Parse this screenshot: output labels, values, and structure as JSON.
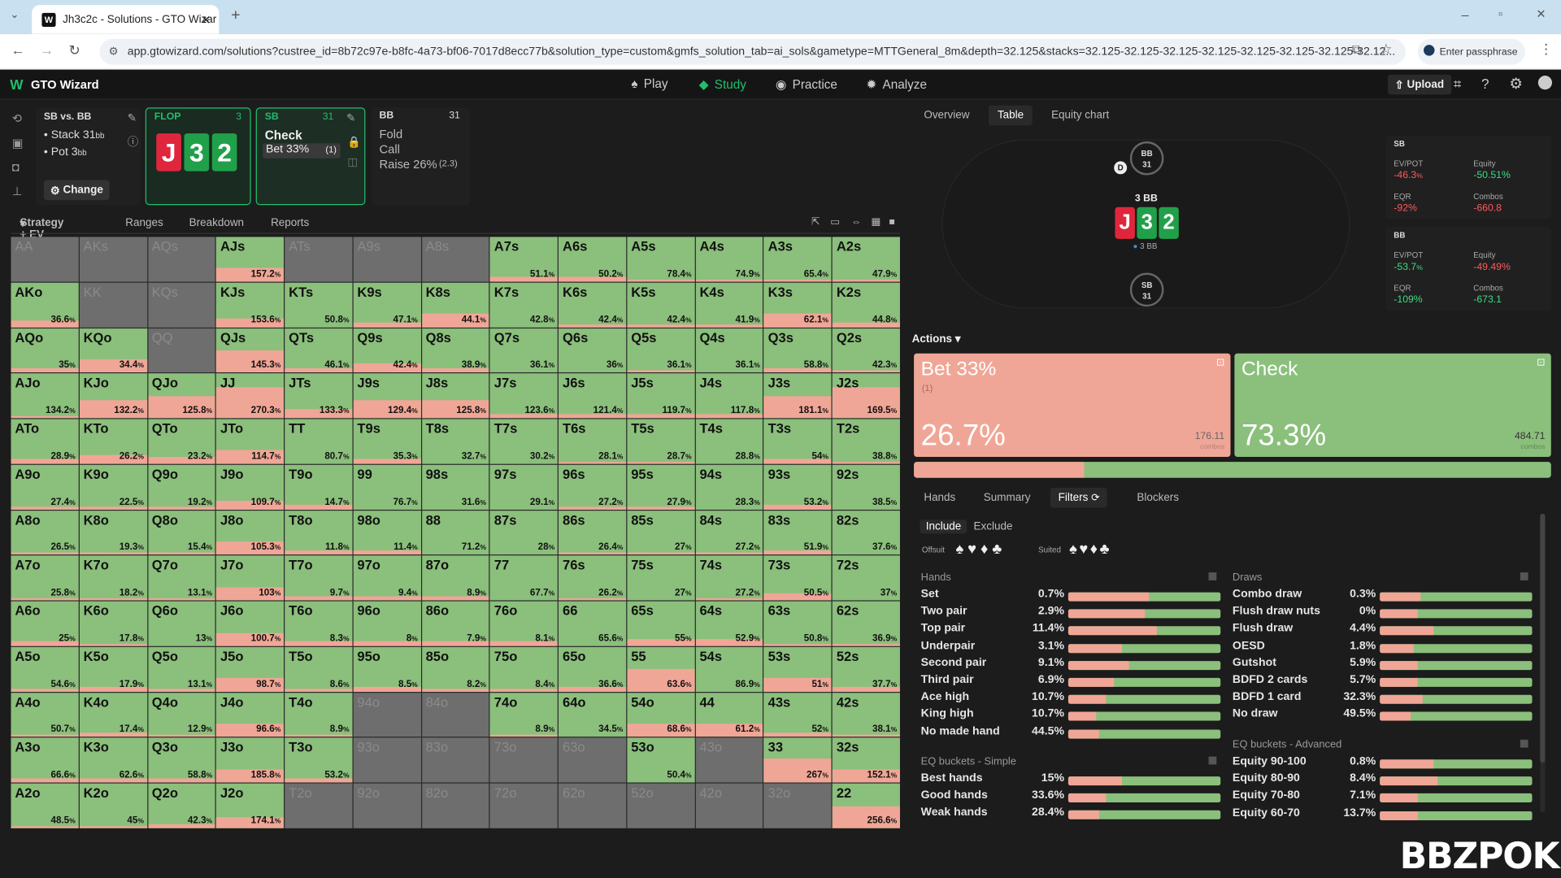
{
  "browser": {
    "tab_title": "Jh3c2c - Solutions - GTO Wizar",
    "url": "app.gtowizard.com/solutions?custree_id=8b72c97e-b8fc-4a73-bf06-7017d8ecc77b&solution_type=custom&gmfs_solution_tab=ai_sols&gametype=MTTGeneral_8m&depth=32.125&stacks=32.125-32.125-32.125-32.125-32.125-32.125-32.125-32.12...",
    "passphrase": "Enter passphrase"
  },
  "app": {
    "name": "GTO Wizard",
    "nav": [
      "Play",
      "Study",
      "Practice",
      "Analyze"
    ],
    "upload": "Upload"
  },
  "spot": {
    "title": "SB vs. BB",
    "stack": "Stack 31",
    "stack_unit": "bb",
    "pot": "Pot 3",
    "pot_unit": "bb",
    "change": "Change"
  },
  "flop": {
    "label": "FLOP",
    "num": "3",
    "cards": [
      "J",
      "3",
      "2"
    ]
  },
  "sb": {
    "label": "SB",
    "num": "31",
    "line1": "Check",
    "line2": "Bet 33%",
    "line2b": "(1)"
  },
  "bb": {
    "label": "BB",
    "num": "31",
    "opts": [
      "Fold",
      "Call",
      "Raise 26%"
    ],
    "raise_size": "(2.3)"
  },
  "subtabs": [
    "Strategy + EV",
    "Ranges",
    "Breakdown",
    "Reports"
  ],
  "grid": [
    [
      "AA",
      "",
      0
    ],
    [
      "AKs",
      "",
      0
    ],
    [
      "AQs",
      "",
      0
    ],
    [
      "AJs",
      "157.2",
      0.3
    ],
    [
      "ATs",
      "",
      0
    ],
    [
      "A9s",
      "",
      0
    ],
    [
      "A8s",
      "",
      0
    ],
    [
      "A7s",
      "51.1",
      0.1
    ],
    [
      "A6s",
      "50.2",
      0.1
    ],
    [
      "A5s",
      "78.4",
      0.05
    ],
    [
      "A4s",
      "74.9",
      0.05
    ],
    [
      "A3s",
      "65.4",
      0.05
    ],
    [
      "A2s",
      "47.9",
      0.05
    ],
    [
      "AKo",
      "36.6",
      0.15
    ],
    [
      "KK",
      "",
      0
    ],
    [
      "KQs",
      "",
      0
    ],
    [
      "KJs",
      "153.6",
      0.2
    ],
    [
      "KTs",
      "50.8",
      0.0
    ],
    [
      "K9s",
      "47.1",
      0.1
    ],
    [
      "K8s",
      "44.1",
      0.3
    ],
    [
      "K7s",
      "42.8",
      0.0
    ],
    [
      "K6s",
      "42.4",
      0.05
    ],
    [
      "K5s",
      "42.4",
      0.05
    ],
    [
      "K4s",
      "41.9",
      0.05
    ],
    [
      "K3s",
      "62.1",
      0.3
    ],
    [
      "K2s",
      "44.8",
      0.1
    ],
    [
      "AQo",
      "35",
      0.1
    ],
    [
      "KQo",
      "34.4",
      0.3
    ],
    [
      "QQ",
      "",
      0
    ],
    [
      "QJs",
      "145.3",
      0.5
    ],
    [
      "QTs",
      "46.1",
      0.1
    ],
    [
      "Q9s",
      "42.4",
      0.2
    ],
    [
      "Q8s",
      "38.9",
      0.1
    ],
    [
      "Q7s",
      "36.1",
      0.0
    ],
    [
      "Q6s",
      "36",
      0.0
    ],
    [
      "Q5s",
      "36.1",
      0.05
    ],
    [
      "Q4s",
      "36.1",
      0.0
    ],
    [
      "Q3s",
      "58.8",
      0.1
    ],
    [
      "Q2s",
      "42.3",
      0.05
    ],
    [
      "AJo",
      "134.2",
      0.05
    ],
    [
      "KJo",
      "132.2",
      0.4
    ],
    [
      "QJo",
      "125.8",
      0.5
    ],
    [
      "JJ",
      "270.3",
      0.7
    ],
    [
      "JTs",
      "133.3",
      0.2
    ],
    [
      "J9s",
      "129.4",
      0.4
    ],
    [
      "J8s",
      "125.8",
      0.4
    ],
    [
      "J7s",
      "123.6",
      0.1
    ],
    [
      "J6s",
      "121.4",
      0.1
    ],
    [
      "J5s",
      "119.7",
      0.1
    ],
    [
      "J4s",
      "117.8",
      0.1
    ],
    [
      "J3s",
      "181.1",
      0.5
    ],
    [
      "J2s",
      "169.5",
      0.7
    ],
    [
      "ATo",
      "28.9",
      0.1
    ],
    [
      "KTo",
      "26.2",
      0.2
    ],
    [
      "QTo",
      "23.2",
      0.15
    ],
    [
      "JTo",
      "114.7",
      0.3
    ],
    [
      "TT",
      "80.7",
      0.0
    ],
    [
      "T9s",
      "35.3",
      0.1
    ],
    [
      "T8s",
      "32.7",
      0.0
    ],
    [
      "T7s",
      "30.2",
      0.0
    ],
    [
      "T6s",
      "28.1",
      0.05
    ],
    [
      "T5s",
      "28.7",
      0.05
    ],
    [
      "T4s",
      "28.8",
      0.0
    ],
    [
      "T3s",
      "54",
      0.1
    ],
    [
      "T2s",
      "38.8",
      0.05
    ],
    [
      "A9o",
      "27.4",
      0.05
    ],
    [
      "K9o",
      "22.5",
      0.05
    ],
    [
      "Q9o",
      "19.2",
      0.05
    ],
    [
      "J9o",
      "109.7",
      0.2
    ],
    [
      "T9o",
      "14.7",
      0.1
    ],
    [
      "99",
      "76.7",
      0.0
    ],
    [
      "98s",
      "31.6",
      0.0
    ],
    [
      "97s",
      "29.1",
      0.0
    ],
    [
      "96s",
      "27.2",
      0.05
    ],
    [
      "95s",
      "27.9",
      0.05
    ],
    [
      "94s",
      "28.3",
      0.0
    ],
    [
      "93s",
      "53.2",
      0.1
    ],
    [
      "92s",
      "38.5",
      0.0
    ],
    [
      "A8o",
      "26.5",
      0.05
    ],
    [
      "K8o",
      "19.3",
      0.05
    ],
    [
      "Q8o",
      "15.4",
      0.05
    ],
    [
      "J8o",
      "105.3",
      0.3
    ],
    [
      "T8o",
      "11.8",
      0.1
    ],
    [
      "98o",
      "11.4",
      0.1
    ],
    [
      "88",
      "71.2",
      0.0
    ],
    [
      "87s",
      "28",
      0.0
    ],
    [
      "86s",
      "26.4",
      0.05
    ],
    [
      "85s",
      "27",
      0.05
    ],
    [
      "84s",
      "27.2",
      0.05
    ],
    [
      "83s",
      "51.9",
      0.1
    ],
    [
      "82s",
      "37.6",
      0.0
    ],
    [
      "A7o",
      "25.8",
      0.05
    ],
    [
      "K7o",
      "18.2",
      0.05
    ],
    [
      "Q7o",
      "13.1",
      0.05
    ],
    [
      "J7o",
      "103",
      0.3
    ],
    [
      "T7o",
      "9.7",
      0.1
    ],
    [
      "97o",
      "9.4",
      0.1
    ],
    [
      "87o",
      "8.9",
      0.1
    ],
    [
      "77",
      "67.7",
      0.0
    ],
    [
      "76s",
      "26.2",
      0.05
    ],
    [
      "75s",
      "27",
      0.0
    ],
    [
      "74s",
      "27.2",
      0.05
    ],
    [
      "73s",
      "50.5",
      0.15
    ],
    [
      "72s",
      "37",
      0.0
    ],
    [
      "A6o",
      "25",
      0.1
    ],
    [
      "K6o",
      "17.8",
      0.05
    ],
    [
      "Q6o",
      "13",
      0.0
    ],
    [
      "J6o",
      "100.7",
      0.3
    ],
    [
      "T6o",
      "8.3",
      0.1
    ],
    [
      "96o",
      "8",
      0.1
    ],
    [
      "86o",
      "7.9",
      0.1
    ],
    [
      "76o",
      "8.1",
      0.1
    ],
    [
      "66",
      "65.6",
      0.0
    ],
    [
      "65s",
      "55",
      0.15
    ],
    [
      "64s",
      "52.9",
      0.15
    ],
    [
      "63s",
      "50.8",
      0.05
    ],
    [
      "62s",
      "36.9",
      0.05
    ],
    [
      "A5o",
      "54.6",
      0.05
    ],
    [
      "K5o",
      "17.9",
      0.1
    ],
    [
      "Q5o",
      "13.1",
      0.05
    ],
    [
      "J5o",
      "98.7",
      0.3
    ],
    [
      "T5o",
      "8.6",
      0.05
    ],
    [
      "95o",
      "8.5",
      0.1
    ],
    [
      "85o",
      "8.2",
      0.05
    ],
    [
      "75o",
      "8.4",
      0.05
    ],
    [
      "65o",
      "36.6",
      0.1
    ],
    [
      "55",
      "63.6",
      0.5
    ],
    [
      "54s",
      "86.9",
      0.0
    ],
    [
      "53s",
      "51",
      0.3
    ],
    [
      "52s",
      "37.7",
      0.1
    ],
    [
      "A4o",
      "50.7",
      0.05
    ],
    [
      "K4o",
      "17.4",
      0.1
    ],
    [
      "Q4o",
      "12.9",
      0.05
    ],
    [
      "J4o",
      "96.6",
      0.3
    ],
    [
      "T4o",
      "8.9",
      0.05
    ],
    [
      "94o",
      "",
      0
    ],
    [
      "84o",
      "",
      0
    ],
    [
      "74o",
      "8.9",
      0.05
    ],
    [
      "64o",
      "34.5",
      0.0
    ],
    [
      "54o",
      "68.6",
      0.3
    ],
    [
      "44",
      "61.2",
      0.3
    ],
    [
      "43s",
      "52",
      0.1
    ],
    [
      "42s",
      "38.1",
      0.05
    ],
    [
      "A3o",
      "66.6",
      0.1
    ],
    [
      "K3o",
      "62.6",
      0.1
    ],
    [
      "Q3o",
      "58.8",
      0.1
    ],
    [
      "J3o",
      "185.8",
      0.3
    ],
    [
      "T3o",
      "53.2",
      0.1
    ],
    [
      "93o",
      "",
      0
    ],
    [
      "83o",
      "",
      0
    ],
    [
      "73o",
      "",
      0
    ],
    [
      "63o",
      "",
      0
    ],
    [
      "53o",
      "50.4",
      0.0
    ],
    [
      "43o",
      "",
      0
    ],
    [
      "33",
      "267",
      0.55
    ],
    [
      "32s",
      "152.1",
      0.3
    ],
    [
      "A2o",
      "48.5",
      0.05
    ],
    [
      "K2o",
      "45",
      0.05
    ],
    [
      "Q2o",
      "42.3",
      0.1
    ],
    [
      "J2o",
      "174.1",
      0.25
    ],
    [
      "T2o",
      "",
      0
    ],
    [
      "92o",
      "",
      0
    ],
    [
      "82o",
      "",
      0
    ],
    [
      "72o",
      "",
      0
    ],
    [
      "62o",
      "",
      0
    ],
    [
      "52o",
      "",
      0
    ],
    [
      "42o",
      "",
      0
    ],
    [
      "32o",
      "",
      0
    ],
    [
      "22",
      "256.6",
      0.5
    ]
  ],
  "grid_tools": [
    "⇱",
    "▭",
    "⇔",
    "▦",
    "■"
  ],
  "right_tabs": [
    "Overview",
    "Table",
    "Equity chart"
  ],
  "table": {
    "bb_seat": "BB",
    "bb_stack": "31",
    "board_label": "3 BB",
    "cards": [
      "J",
      "3",
      "2"
    ],
    "pot_chip": "3 BB",
    "sb_seat": "SB",
    "sb_stack": "31"
  },
  "stats": {
    "sb": {
      "label": "SB",
      "evpot_l": "EV/POT",
      "evpot": "-46.3",
      "evpot_u": "%",
      "eq_l": "Equity",
      "eq": "-50.51%",
      "eqr_l": "EQR",
      "eqr": "-92%",
      "combos_l": "Combos",
      "combos": "-660.8"
    },
    "bb": {
      "label": "BB",
      "evpot_l": "EV/POT",
      "evpot": "-53.7",
      "evpot_u": "%",
      "eq_l": "Equity",
      "eq": "-49.49%",
      "eqr_l": "EQR",
      "eqr": "-109%",
      "combos_l": "Combos",
      "combos": "-673.1"
    }
  },
  "actions": {
    "label": "Actions",
    "bet": {
      "name": "Bet 33%",
      "sub": "(1)",
      "pct": "26.7%",
      "combos": "176.11",
      "combos_l": "combos"
    },
    "check": {
      "name": "Check",
      "pct": "73.3%",
      "combos": "484.71",
      "combos_l": "combos"
    },
    "bet_share": 0.267
  },
  "filter_tabs": [
    "Hands",
    "Summary",
    "Filters",
    "Blockers"
  ],
  "incl": [
    "Include",
    "Exclude"
  ],
  "suit_labels": [
    "Offsuit",
    "Suited"
  ],
  "suits": [
    "♠",
    "♥",
    "♦",
    "♣"
  ],
  "sections": {
    "hands": "Hands",
    "draws": "Draws",
    "eq_simple": "EQ buckets - Simple",
    "eq_adv": "EQ buckets - Advanced"
  },
  "hands": [
    [
      "Set",
      "0.7%",
      0.53
    ],
    [
      "Two pair",
      "2.9%",
      0.5
    ],
    [
      "Top pair",
      "11.4%",
      0.58
    ],
    [
      "Underpair",
      "3.1%",
      0.35
    ],
    [
      "Second pair",
      "9.1%",
      0.4
    ],
    [
      "Third pair",
      "6.9%",
      0.3
    ],
    [
      "Ace high",
      "10.7%",
      0.25
    ],
    [
      "King high",
      "10.7%",
      0.18
    ],
    [
      "No made hand",
      "44.5%",
      0.2
    ]
  ],
  "draws": [
    [
      "Combo draw",
      "0.3%",
      0.27
    ],
    [
      "Flush draw nuts",
      "0%",
      0.25
    ],
    [
      "Flush draw",
      "4.4%",
      0.35
    ],
    [
      "OESD",
      "1.8%",
      0.22
    ],
    [
      "Gutshot",
      "5.9%",
      0.25
    ],
    [
      "BDFD 2 cards",
      "5.7%",
      0.25
    ],
    [
      "BDFD 1 card",
      "32.3%",
      0.28
    ],
    [
      "No draw",
      "49.5%",
      0.2
    ]
  ],
  "eq_simple": [
    [
      "Best hands",
      "15%",
      0.35
    ],
    [
      "Good hands",
      "33.6%",
      0.25
    ],
    [
      "Weak hands",
      "28.4%",
      0.2
    ]
  ],
  "eq_adv": [
    [
      "Equity 90-100",
      "0.8%",
      0.35
    ],
    [
      "Equity 80-90",
      "8.4%",
      0.38
    ],
    [
      "Equity 70-80",
      "7.1%",
      0.25
    ],
    [
      "Equity 60-70",
      "13.7%",
      0.25
    ]
  ],
  "watermark": "BBZPOKER",
  "colors": {
    "bet": "#f0a696",
    "check": "#8bbf7c",
    "accent": "#1fbf6c",
    "red_card": "#e0263d",
    "green_card": "#21a04a"
  }
}
